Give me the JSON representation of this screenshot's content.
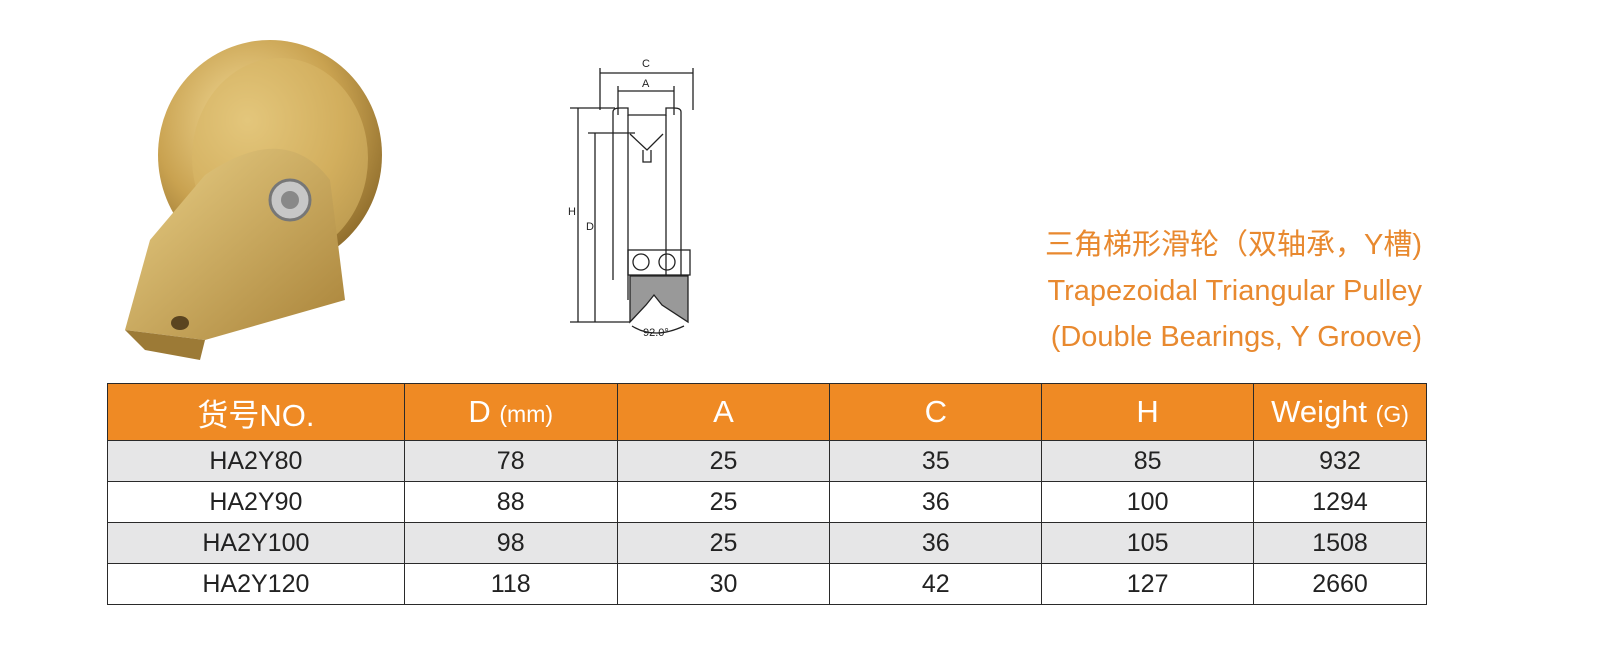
{
  "product": {
    "title_cn": "三角梯形滑轮（双轴承，Y槽)",
    "title_en": "Trapezoidal Triangular Pulley",
    "subtitle_en": "(Double Bearings, Y Groove)"
  },
  "drawing": {
    "label_c": "C",
    "label_a": "A",
    "label_h": "H",
    "label_d": "D",
    "angle": "92.0°"
  },
  "colors": {
    "accent": "#ef8a24",
    "title": "#e8892f",
    "row_alt": "#e6e6e7"
  },
  "table": {
    "headers": [
      {
        "main": "货号NO.",
        "unit": ""
      },
      {
        "main": "D ",
        "unit": "(mm)"
      },
      {
        "main": "A",
        "unit": ""
      },
      {
        "main": "C",
        "unit": ""
      },
      {
        "main": "H",
        "unit": ""
      },
      {
        "main": "Weight ",
        "unit": "(G)"
      }
    ],
    "rows": [
      [
        "HA2Y80",
        "78",
        "25",
        "35",
        "85",
        "932"
      ],
      [
        "HA2Y90",
        "88",
        "25",
        "36",
        "100",
        "1294"
      ],
      [
        "HA2Y100",
        "98",
        "25",
        "36",
        "105",
        "1508"
      ],
      [
        "HA2Y120",
        "118",
        "30",
        "42",
        "127",
        "2660"
      ]
    ]
  }
}
